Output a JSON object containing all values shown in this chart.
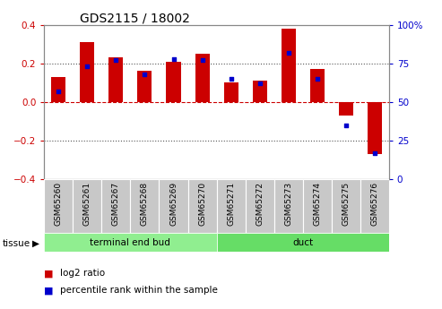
{
  "title": "GDS2115 / 18002",
  "samples": [
    "GSM65260",
    "GSM65261",
    "GSM65267",
    "GSM65268",
    "GSM65269",
    "GSM65270",
    "GSM65271",
    "GSM65272",
    "GSM65273",
    "GSM65274",
    "GSM65275",
    "GSM65276"
  ],
  "log2_ratio": [
    0.13,
    0.31,
    0.23,
    0.16,
    0.21,
    0.25,
    0.1,
    0.11,
    0.38,
    0.17,
    -0.07,
    -0.27
  ],
  "percentile_rank": [
    57,
    73,
    77,
    68,
    78,
    77,
    65,
    62,
    82,
    65,
    35,
    17
  ],
  "groups": [
    {
      "label": "terminal end bud",
      "start": 0,
      "end": 6,
      "color": "#90EE90"
    },
    {
      "label": "duct",
      "start": 6,
      "end": 12,
      "color": "#66DD66"
    }
  ],
  "bar_color": "#CC0000",
  "percentile_color": "#0000CC",
  "ylim_left": [
    -0.4,
    0.4
  ],
  "ylim_right": [
    0,
    100
  ],
  "yticks_left": [
    -0.4,
    -0.2,
    0.0,
    0.2,
    0.4
  ],
  "yticks_right": [
    0,
    25,
    50,
    75,
    100
  ],
  "hline_color": "#CC0000",
  "dotted_color": "#555555",
  "bg_color": "#ffffff",
  "plot_bg_color": "#ffffff",
  "left_label_color": "#CC0000",
  "right_label_color": "#0000CC",
  "tissue_label": "tissue",
  "legend_log2": "log2 ratio",
  "legend_pct": "percentile rank within the sample",
  "bar_width": 0.5
}
